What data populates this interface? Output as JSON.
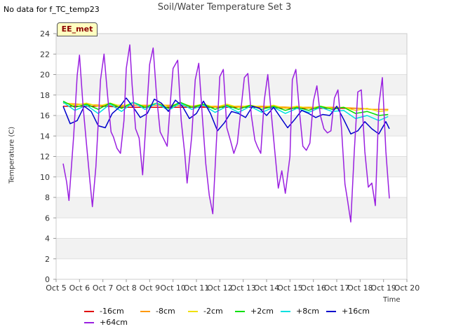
{
  "no_data_note": "No data for f_TC_temp23",
  "badge": "EE_met",
  "chart_data": {
    "type": "line",
    "title": "Soil/Water Temperature Set 3",
    "xlabel": "Time",
    "ylabel": "Temperature (C)",
    "x_tick_labels": [
      "Oct 5",
      "Oct 6",
      "Oct 7",
      "Oct 8",
      "Oct 9",
      "Oct 10",
      "Oct 11",
      "Oct 12",
      "Oct 13",
      "Oct 14",
      "Oct 15",
      "Oct 16",
      "Oct 17",
      "Oct 18",
      "Oct 19",
      "Oct 20"
    ],
    "x_range_days": [
      5,
      20
    ],
    "y_ticks": [
      0,
      2,
      4,
      6,
      8,
      10,
      12,
      14,
      16,
      18,
      20,
      22,
      24
    ],
    "ylim": [
      0,
      24
    ],
    "grid": "horizontal alternating bands",
    "legend_position": "bottom",
    "series": [
      {
        "name": "-16cm",
        "color": "#e00000",
        "x": [
          5.3,
          6,
          7,
          8,
          9,
          10,
          11,
          12,
          13,
          14,
          15,
          16,
          17,
          18,
          18.5,
          19.2
        ],
        "y": [
          16.9,
          16.9,
          16.9,
          16.8,
          16.8,
          16.8,
          16.8,
          16.8,
          16.8,
          16.8,
          16.7,
          16.7,
          16.7,
          16.7,
          16.6,
          16.6
        ]
      },
      {
        "name": "-8cm",
        "color": "#ff9900",
        "x": [
          5.3,
          6,
          7,
          8,
          9,
          10,
          11,
          12,
          13,
          14,
          15,
          16,
          17,
          18,
          18.5,
          19.2
        ],
        "y": [
          17.2,
          17.1,
          17.0,
          17.0,
          17.0,
          17.0,
          16.9,
          16.9,
          16.9,
          16.9,
          16.8,
          16.8,
          16.8,
          16.7,
          16.6,
          16.6
        ]
      },
      {
        "name": "-2cm",
        "color": "#f0e000",
        "x": [
          5.3,
          5.8,
          6.3,
          6.8,
          7.3,
          7.8,
          8.3,
          8.8,
          9.3,
          9.8,
          10.3,
          10.8,
          11.3,
          11.8,
          12.3,
          12.8,
          13.3,
          13.8,
          14.3,
          14.8,
          15.3,
          15.8,
          16.3,
          16.8,
          17.3,
          17.8,
          18.3,
          18.8,
          19.2
        ],
        "y": [
          17.3,
          17.0,
          17.2,
          16.9,
          17.2,
          16.9,
          17.2,
          16.9,
          17.2,
          16.9,
          17.2,
          16.9,
          17.1,
          16.8,
          17.1,
          16.8,
          17.0,
          16.8,
          17.0,
          16.7,
          16.9,
          16.7,
          16.9,
          16.7,
          16.8,
          16.5,
          16.7,
          16.4,
          16.5
        ]
      },
      {
        "name": "+2cm",
        "color": "#00e000",
        "x": [
          5.3,
          5.8,
          6.3,
          6.8,
          7.3,
          7.8,
          8.3,
          8.8,
          9.3,
          9.8,
          10.3,
          10.8,
          11.3,
          11.8,
          12.3,
          12.8,
          13.3,
          13.8,
          14.3,
          14.8,
          15.3,
          15.8,
          16.3,
          16.8,
          17.3,
          17.8,
          18.3,
          18.8,
          19.2
        ],
        "y": [
          17.4,
          16.8,
          17.1,
          16.6,
          17.2,
          16.7,
          17.3,
          16.8,
          17.2,
          16.7,
          17.3,
          16.8,
          17.1,
          16.6,
          17.0,
          16.6,
          17.0,
          16.6,
          16.9,
          16.5,
          16.8,
          16.5,
          16.9,
          16.6,
          16.8,
          16.2,
          16.4,
          16.0,
          16.1
        ]
      },
      {
        "name": "+8cm",
        "color": "#00e0e0",
        "x": [
          5.3,
          5.8,
          6.3,
          6.8,
          7.3,
          7.8,
          8.3,
          8.8,
          9.3,
          9.8,
          10.3,
          10.8,
          11.3,
          11.8,
          12.3,
          12.8,
          13.3,
          13.8,
          14.3,
          14.8,
          15.3,
          15.8,
          16.3,
          16.8,
          17.3,
          17.8,
          18.3,
          18.8,
          19.2
        ],
        "y": [
          17.3,
          16.5,
          17.0,
          16.2,
          17.1,
          16.4,
          17.3,
          16.6,
          17.2,
          16.5,
          17.2,
          16.6,
          17.0,
          16.3,
          16.9,
          16.3,
          16.9,
          16.3,
          16.8,
          16.2,
          16.7,
          16.3,
          16.8,
          16.4,
          16.5,
          15.7,
          16.0,
          15.5,
          15.9
        ]
      },
      {
        "name": "+16cm",
        "color": "#0000cc",
        "x": [
          5.3,
          5.6,
          5.9,
          6.2,
          6.5,
          6.8,
          7.1,
          7.4,
          7.7,
          8.0,
          8.3,
          8.6,
          8.9,
          9.2,
          9.5,
          9.8,
          10.1,
          10.4,
          10.7,
          11.0,
          11.3,
          11.6,
          11.9,
          12.2,
          12.5,
          12.8,
          13.1,
          13.4,
          13.7,
          14.0,
          14.3,
          14.6,
          14.9,
          15.2,
          15.5,
          15.8,
          16.1,
          16.4,
          16.7,
          17.0,
          17.3,
          17.6,
          17.9,
          18.2,
          18.5,
          18.8,
          19.1,
          19.25
        ],
        "y": [
          16.9,
          15.2,
          15.5,
          16.9,
          16.4,
          15.0,
          14.8,
          16.2,
          16.8,
          17.7,
          16.8,
          15.8,
          16.2,
          17.6,
          17.2,
          16.4,
          17.5,
          16.9,
          15.7,
          16.2,
          17.4,
          16.2,
          14.5,
          15.3,
          16.4,
          16.2,
          15.8,
          16.9,
          16.7,
          16.0,
          16.8,
          15.8,
          14.8,
          15.6,
          16.5,
          16.2,
          15.8,
          16.1,
          16.0,
          16.9,
          15.6,
          14.2,
          14.5,
          15.4,
          14.7,
          14.2,
          15.4,
          14.7
        ]
      },
      {
        "name": "+64cm",
        "color": "#9a20e0",
        "x": [
          5.3,
          5.45,
          5.55,
          5.75,
          5.9,
          6.0,
          6.15,
          6.3,
          6.45,
          6.55,
          6.7,
          6.9,
          7.05,
          7.2,
          7.35,
          7.45,
          7.6,
          7.75,
          7.9,
          8.0,
          8.15,
          8.25,
          8.4,
          8.55,
          8.7,
          8.85,
          9.0,
          9.15,
          9.3,
          9.45,
          9.6,
          9.75,
          9.9,
          10.0,
          10.2,
          10.35,
          10.5,
          10.6,
          10.8,
          10.95,
          11.1,
          11.25,
          11.4,
          11.55,
          11.7,
          11.85,
          12.0,
          12.15,
          12.3,
          12.45,
          12.6,
          12.75,
          12.9,
          13.05,
          13.2,
          13.35,
          13.5,
          13.6,
          13.75,
          13.9,
          14.05,
          14.2,
          14.35,
          14.5,
          14.65,
          14.8,
          15.0,
          15.1,
          15.25,
          15.4,
          15.55,
          15.7,
          15.85,
          16.0,
          16.15,
          16.3,
          16.45,
          16.6,
          16.75,
          16.9,
          17.05,
          17.2,
          17.35,
          17.45,
          17.6,
          17.75,
          17.9,
          18.05,
          18.2,
          18.35,
          18.5,
          18.65,
          18.8,
          18.95,
          19.1,
          19.25
        ],
        "y": [
          11.3,
          9.5,
          7.7,
          14.0,
          19.9,
          21.9,
          17.0,
          13.2,
          9.5,
          7.1,
          11.0,
          19.5,
          22.0,
          18.0,
          14.4,
          13.9,
          12.8,
          12.3,
          15.5,
          20.6,
          22.9,
          19.0,
          14.7,
          13.8,
          10.2,
          15.6,
          21.0,
          22.6,
          17.8,
          14.4,
          13.7,
          13.0,
          17.7,
          20.6,
          21.4,
          15.5,
          12.3,
          9.4,
          14.0,
          19.5,
          21.1,
          16.0,
          11.3,
          8.2,
          6.4,
          13.2,
          19.8,
          20.5,
          14.8,
          13.6,
          12.3,
          13.3,
          16.5,
          19.7,
          20.1,
          16.0,
          13.6,
          13.0,
          12.3,
          17.5,
          20.0,
          16.2,
          12.5,
          8.9,
          10.6,
          8.4,
          12.0,
          19.5,
          20.5,
          16.5,
          13.0,
          12.6,
          13.3,
          17.4,
          18.9,
          16.0,
          14.7,
          14.3,
          14.5,
          17.7,
          18.5,
          14.8,
          9.3,
          7.9,
          5.6,
          12.5,
          18.3,
          18.5,
          12.5,
          9.0,
          9.4,
          7.2,
          17.0,
          19.7,
          12.5,
          7.9
        ]
      }
    ]
  }
}
